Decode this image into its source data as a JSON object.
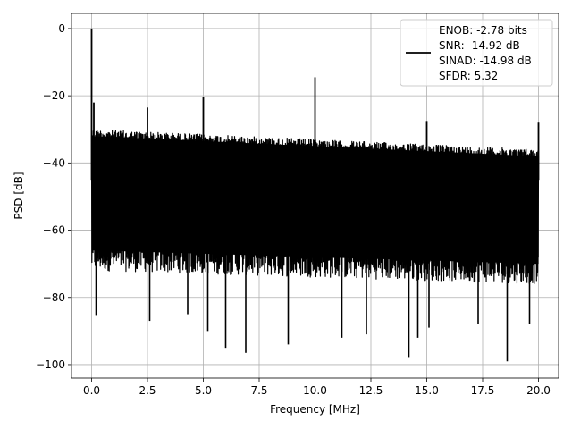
{
  "chart_data": {
    "type": "line",
    "title": "",
    "xlabel": "Frequency [MHz]",
    "ylabel": "PSD [dB]",
    "xlim": [
      -0.9,
      20.9
    ],
    "ylim": [
      -104,
      4.5
    ],
    "xticks": [
      0.0,
      2.5,
      5.0,
      7.5,
      10.0,
      12.5,
      15.0,
      17.5,
      20.0
    ],
    "xtick_labels": [
      "0.0",
      "2.5",
      "5.0",
      "7.5",
      "10.0",
      "12.5",
      "15.0",
      "17.5",
      "20.0"
    ],
    "yticks": [
      0,
      -20,
      -40,
      -60,
      -80,
      -100
    ],
    "ytick_labels": [
      "0",
      "−20",
      "−40",
      "−60",
      "−80",
      "−100"
    ],
    "grid": true,
    "legend_position": "top-right",
    "series": [
      {
        "color": "#000000",
        "noise_floor": {
          "x": [
            0.0,
            20.0
          ],
          "upper_db": [
            -30,
            -36
          ],
          "lower_db": [
            -72,
            -76
          ]
        },
        "spurs": [
          {
            "x": 0.0,
            "y": 0.0
          },
          {
            "x": 0.1,
            "y": -22
          },
          {
            "x": 2.5,
            "y": -23.5
          },
          {
            "x": 5.0,
            "y": -20.5
          },
          {
            "x": 10.0,
            "y": -14.5
          },
          {
            "x": 15.0,
            "y": -27.5
          },
          {
            "x": 20.0,
            "y": -28.0
          }
        ],
        "dips": [
          {
            "x": 0.2,
            "y": -85.5
          },
          {
            "x": 2.6,
            "y": -87
          },
          {
            "x": 4.3,
            "y": -85
          },
          {
            "x": 5.2,
            "y": -90
          },
          {
            "x": 6.0,
            "y": -95
          },
          {
            "x": 6.9,
            "y": -96.5
          },
          {
            "x": 8.8,
            "y": -94
          },
          {
            "x": 11.2,
            "y": -92
          },
          {
            "x": 12.3,
            "y": -91
          },
          {
            "x": 14.2,
            "y": -98
          },
          {
            "x": 14.6,
            "y": -92
          },
          {
            "x": 15.1,
            "y": -89
          },
          {
            "x": 17.3,
            "y": -88
          },
          {
            "x": 18.6,
            "y": -99
          },
          {
            "x": 19.6,
            "y": -88
          }
        ]
      }
    ],
    "legend": {
      "lines": [
        "ENOB: -2.78 bits",
        "SNR: -14.92 dB",
        "SINAD: -14.98 dB",
        "SFDR: 5.32"
      ]
    }
  }
}
